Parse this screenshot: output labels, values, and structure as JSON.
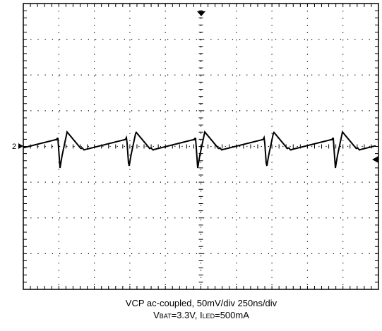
{
  "figure": {
    "channel_marker": "2",
    "caption": {
      "line1": "VCP ac-coupled, 50mV/div  250ns/div",
      "line2": [
        "V",
        "BAT",
        "=3.3V, I",
        "LED",
        "=500mA"
      ]
    }
  }
}
